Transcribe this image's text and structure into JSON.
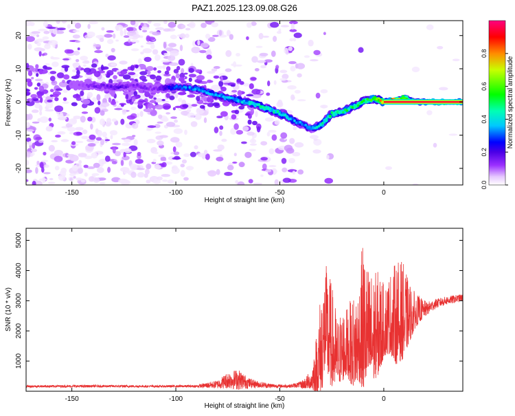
{
  "title": "PAZ1.2025.123.09.08.G26",
  "chart_data": [
    {
      "type": "heatmap",
      "xlabel": "Height of straight line (km)",
      "ylabel": "Frequency (Hz)",
      "xlim": [
        -172,
        38
      ],
      "ylim": [
        -25,
        24.5
      ],
      "xticks": [
        -150,
        -100,
        -50,
        0
      ],
      "xtick_labels": [
        "-150",
        "-100",
        "-50",
        "0"
      ],
      "yticks": [
        -20,
        -10,
        0,
        10,
        20
      ],
      "ytick_labels": [
        "-20",
        "-10",
        "0",
        "10",
        "20"
      ],
      "colorbar": {
        "label": "Normalized spectral amplitude",
        "range": [
          0,
          1
        ],
        "ticks": [
          0.0,
          0.2,
          0.4,
          0.6,
          0.8
        ],
        "tick_labels": [
          "0.0",
          "0.2",
          "0.4",
          "0.6",
          "0.8"
        ]
      },
      "ridge": {
        "x": [
          -150,
          -140,
          -130,
          -120,
          -110,
          -100,
          -90,
          -80,
          -70,
          -60,
          -50,
          -40,
          -35,
          -30,
          -25,
          -20,
          -15,
          -10,
          -5,
          0,
          5,
          10,
          15,
          20,
          25,
          30,
          38
        ],
        "y": [
          5,
          5,
          4.5,
          5,
          4,
          4.5,
          4,
          2,
          0.5,
          -1,
          -3.5,
          -6.5,
          -8,
          -7,
          -3.5,
          -3,
          -1.5,
          0,
          1,
          0,
          0.5,
          1.5,
          0,
          0,
          0,
          0,
          0
        ],
        "peak_amplitude": [
          0.1,
          0.15,
          0.2,
          0.15,
          0.15,
          0.3,
          0.35,
          0.35,
          0.4,
          0.45,
          0.45,
          0.35,
          0.35,
          0.45,
          0.5,
          0.5,
          0.5,
          0.55,
          0.55,
          0.9,
          0.9,
          0.6,
          0.5,
          0.9,
          0.95,
          0.95,
          0.95
        ]
      },
      "grid": false
    },
    {
      "type": "line",
      "xlabel": "Height of straight line (km)",
      "ylabel": "SNR (10 * v/v)",
      "xlim": [
        -172,
        38
      ],
      "ylim": [
        0,
        5400
      ],
      "xticks": [
        -150,
        -100,
        -50,
        0
      ],
      "xtick_labels": [
        "-150",
        "-100",
        "-50",
        "0"
      ],
      "yticks": [
        1000,
        2000,
        3000,
        4000,
        5000
      ],
      "ytick_labels": [
        "1000",
        "2000",
        "3000",
        "4000",
        "5000"
      ],
      "color": "#e83232",
      "envelope": {
        "x": [
          -172,
          -150,
          -130,
          -110,
          -90,
          -80,
          -75,
          -70,
          -65,
          -60,
          -55,
          -50,
          -45,
          -40,
          -35,
          -32,
          -30,
          -28,
          -26,
          -24,
          -22,
          -20,
          -18,
          -15,
          -12,
          -10,
          -8,
          -5,
          -2,
          0,
          3,
          6,
          9,
          12,
          15,
          20,
          25,
          30,
          38
        ],
        "base": [
          150,
          150,
          150,
          150,
          150,
          170,
          250,
          250,
          200,
          180,
          150,
          150,
          150,
          180,
          300,
          700,
          1200,
          2000,
          1500,
          1200,
          1000,
          1200,
          1300,
          1200,
          1500,
          1800,
          1700,
          1600,
          1800,
          2000,
          2200,
          2100,
          2200,
          2300,
          2500,
          2700,
          2900,
          3000,
          3100
        ],
        "amplitude": [
          50,
          60,
          60,
          50,
          60,
          200,
          400,
          500,
          250,
          150,
          120,
          80,
          80,
          150,
          400,
          1500,
          2500,
          2300,
          2500,
          2000,
          1400,
          1700,
          1500,
          2000,
          2200,
          3400,
          2600,
          2400,
          2300,
          1600,
          1800,
          2300,
          2200,
          1400,
          800,
          300,
          200,
          180,
          150
        ]
      },
      "grid": false
    }
  ]
}
